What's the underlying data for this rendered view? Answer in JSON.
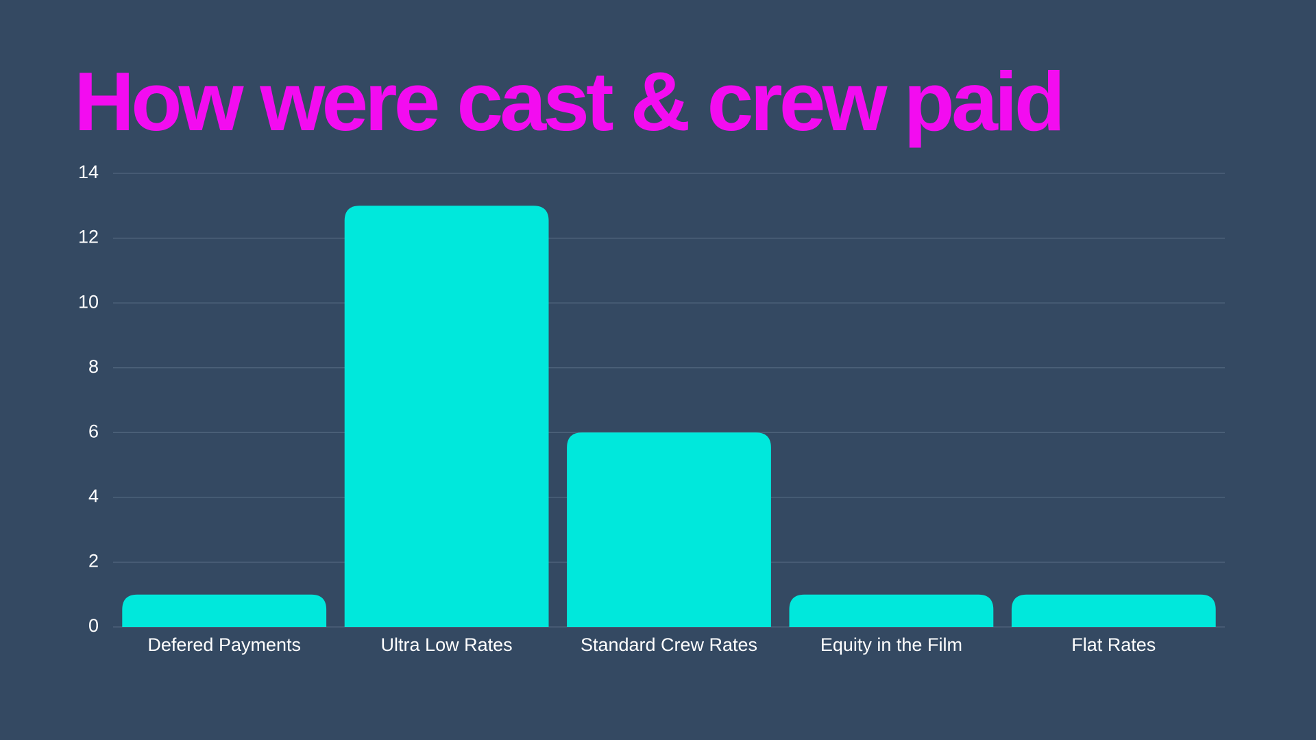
{
  "chart_data": {
    "type": "bar",
    "title": "How were cast & crew paid",
    "categories": [
      "Defered Payments",
      "Ultra Low Rates",
      "Standard Crew Rates",
      "Equity in the Film",
      "Flat Rates"
    ],
    "values": [
      1,
      13,
      6,
      1,
      1
    ],
    "color": "#00e8dc",
    "ylim": [
      0,
      14
    ],
    "yticks": [
      0,
      2,
      4,
      6,
      8,
      10,
      12,
      14
    ],
    "grid": true
  }
}
